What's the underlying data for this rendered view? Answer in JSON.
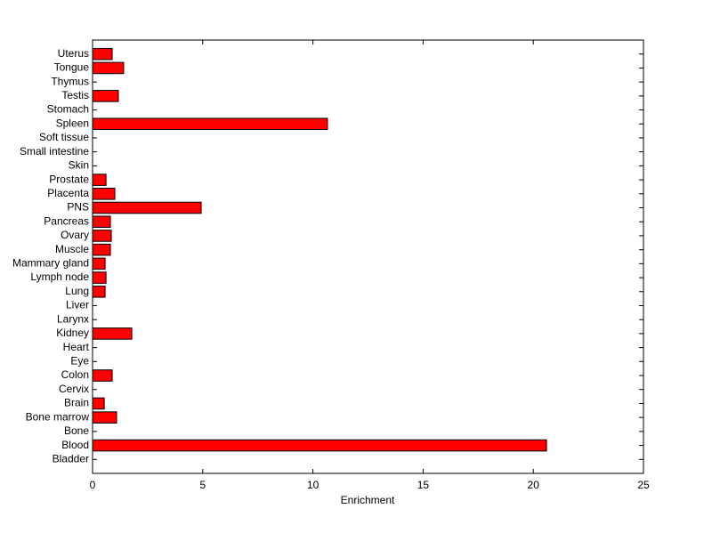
{
  "chart_data": {
    "type": "barh",
    "x_label": "Enrichment",
    "categories": [
      "Bladder",
      "Blood",
      "Bone",
      "Bone marrow",
      "Brain",
      "Cervix",
      "Colon",
      "Eye",
      "Heart",
      "Kidney",
      "Larynx",
      "Liver",
      "Lung",
      "Lymph node",
      "Mammary gland",
      "Muscle",
      "Ovary",
      "Pancreas",
      "PNS",
      "Placenta",
      "Prostate",
      "Skin",
      "Small intestine",
      "Soft tissue",
      "Spleen",
      "Stomach",
      "Testis",
      "Thymus",
      "Tongue",
      "Uterus"
    ],
    "values": [
      0,
      20.6,
      0,
      1.09,
      0.53,
      0,
      0.89,
      0,
      0,
      1.78,
      0,
      0,
      0.57,
      0.61,
      0.57,
      0.81,
      0.85,
      0.81,
      4.93,
      1.01,
      0.61,
      0,
      0,
      0,
      10.66,
      0,
      1.17,
      0,
      1.41,
      0.89
    ],
    "color": "#ff0000",
    "xlim": [
      0,
      25
    ],
    "xticks": [
      0,
      5,
      10,
      15,
      20,
      25
    ]
  }
}
